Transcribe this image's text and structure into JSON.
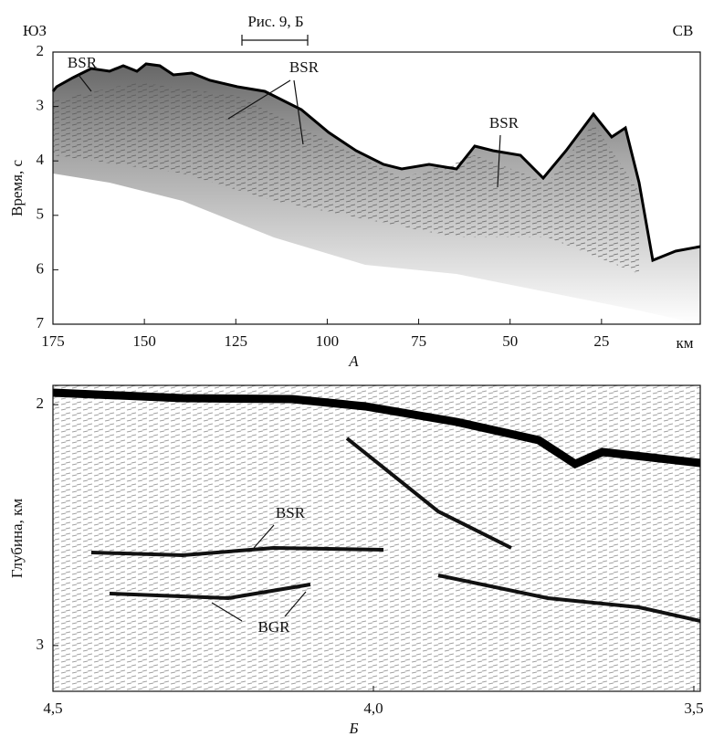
{
  "chart_data": [
    {
      "type": "seismic-section",
      "left_label": "ЮЗ",
      "right_label": "СВ",
      "reference": "Рис. 9, Б",
      "x_label": "A",
      "x_unit": "км",
      "y_label": "Время, с",
      "xlim": [
        175,
        -2
      ],
      "xticks": [
        175,
        150,
        125,
        100,
        75,
        50,
        25
      ],
      "ylim": [
        2,
        7
      ],
      "yticks": [
        2,
        3,
        4,
        5,
        6,
        7
      ],
      "y_inverted": true,
      "annotations": [
        "BSR",
        "BSR",
        "BSR"
      ]
    },
    {
      "type": "seismic-section",
      "x_label": "Б",
      "y_label": "Глубина, км",
      "xlim": [
        4.5,
        3.49
      ],
      "xticks": [
        {
          "value": 4.5,
          "label": "4,5"
        },
        {
          "value": 4.0,
          "label": "4,0"
        },
        {
          "value": 3.5,
          "label": "3,5"
        }
      ],
      "ylim": [
        1.92,
        3.19
      ],
      "yticks": [
        2,
        3
      ],
      "y_inverted": true,
      "annotations": [
        "BSR",
        "BGR"
      ]
    }
  ]
}
